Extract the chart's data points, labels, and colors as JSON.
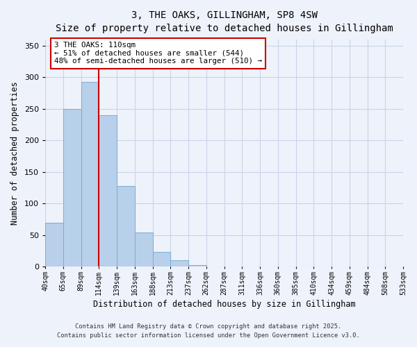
{
  "title": "3, THE OAKS, GILLINGHAM, SP8 4SW",
  "subtitle": "Size of property relative to detached houses in Gillingham",
  "xlabel": "Distribution of detached houses by size in Gillingham",
  "ylabel": "Number of detached properties",
  "bar_values": [
    70,
    250,
    293,
    240,
    128,
    54,
    23,
    10,
    3,
    0,
    0,
    0,
    0,
    0,
    0,
    0,
    0,
    0,
    0,
    0
  ],
  "bin_labels": [
    "40sqm",
    "65sqm",
    "89sqm",
    "114sqm",
    "139sqm",
    "163sqm",
    "188sqm",
    "213sqm",
    "237sqm",
    "262sqm",
    "287sqm",
    "311sqm",
    "336sqm",
    "360sqm",
    "385sqm",
    "410sqm",
    "434sqm",
    "459sqm",
    "484sqm",
    "508sqm",
    "533sqm"
  ],
  "bar_color": "#b8d0ea",
  "bar_edgecolor": "#7aadd4",
  "vline_color": "#cc0000",
  "ylim": [
    0,
    360
  ],
  "yticks": [
    0,
    50,
    100,
    150,
    200,
    250,
    300,
    350
  ],
  "annotation_text": "3 THE OAKS: 110sqm\n← 51% of detached houses are smaller (544)\n48% of semi-detached houses are larger (510) →",
  "annotation_box_color": "#ffffff",
  "annotation_box_edge": "#cc0000",
  "footer1": "Contains HM Land Registry data © Crown copyright and database right 2025.",
  "footer2": "Contains public sector information licensed under the Open Government Licence v3.0.",
  "background_color": "#eef2fa",
  "grid_color": "#c8d4e8"
}
